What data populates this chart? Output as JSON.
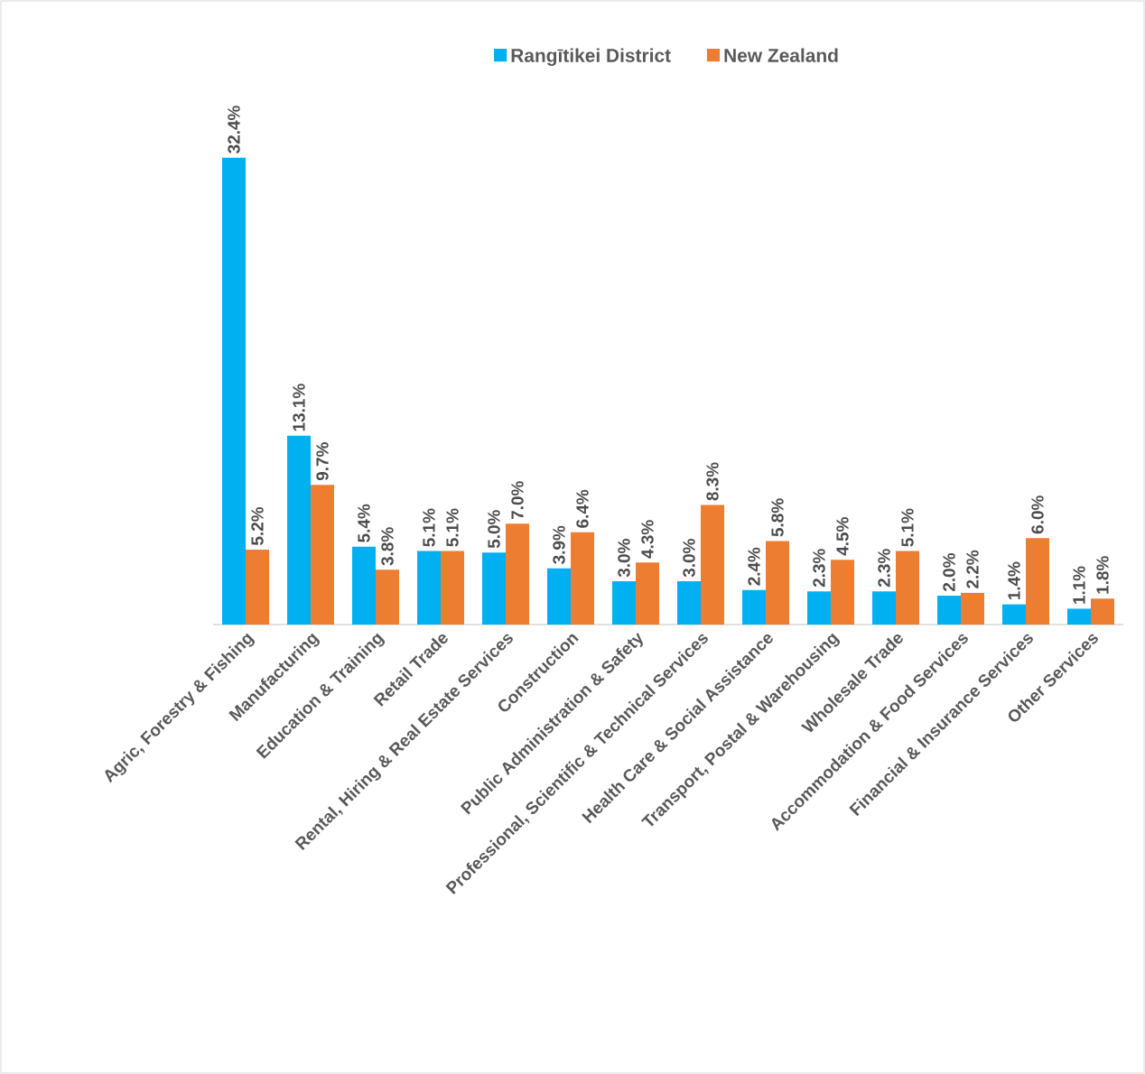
{
  "chart_data": {
    "type": "bar",
    "legend": "top",
    "categories": [
      "Agric, Forestry & Fishing",
      "Manufacturing",
      "Education & Training",
      "Retail Trade",
      "Rental, Hiring & Real Estate Services",
      "Construction",
      "Public Administration & Safety",
      "Professional, Scientific & Technical Services",
      "Health Care & Social Assistance",
      "Transport, Postal & Warehousing",
      "Wholesale Trade",
      "Accommodation & Food Services",
      "Financial & Insurance Services",
      "Other Services"
    ],
    "series": [
      {
        "name": "Rangītikei District",
        "color": "#00b0f0",
        "values": [
          32.4,
          13.1,
          5.4,
          5.1,
          5.0,
          3.9,
          3.0,
          3.0,
          2.4,
          2.3,
          2.3,
          2.0,
          1.4,
          1.1
        ],
        "value_labels": [
          "32.4%",
          "13.1%",
          "5.4%",
          "5.1%",
          "5.0%",
          "3.9%",
          "3.0%",
          "3.0%",
          "2.4%",
          "2.3%",
          "2.3%",
          "2.0%",
          "1.4%",
          "1.1%"
        ]
      },
      {
        "name": "New Zealand",
        "color": "#ed7d31",
        "values": [
          5.2,
          9.7,
          3.8,
          5.1,
          7.0,
          6.4,
          4.3,
          8.3,
          5.8,
          4.5,
          5.1,
          2.2,
          6.0,
          1.8
        ],
        "value_labels": [
          "5.2%",
          "9.7%",
          "3.8%",
          "5.1%",
          "7.0%",
          "6.4%",
          "4.3%",
          "8.3%",
          "5.8%",
          "4.5%",
          "5.1%",
          "2.2%",
          "6.0%",
          "1.8%"
        ]
      }
    ]
  }
}
